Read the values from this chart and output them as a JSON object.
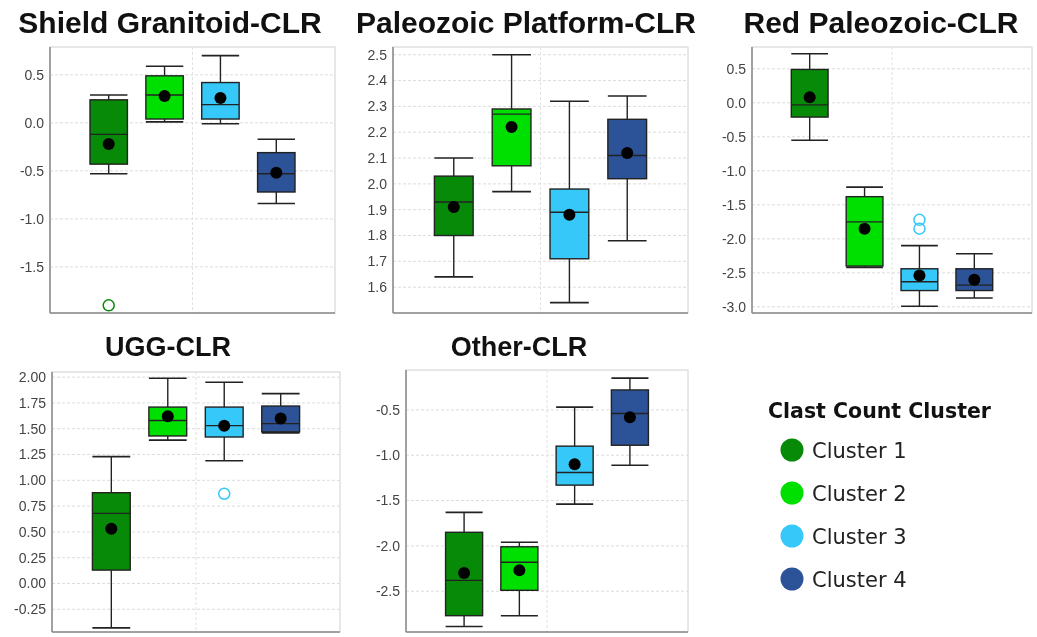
{
  "chart_data": [
    {
      "type": "box",
      "title": "Shield Granitoid-CLR",
      "categories": [
        null
      ],
      "ylim": [
        -1.98,
        0.79
      ],
      "yticks": [
        -1.5,
        {
          "value": -1,
          "label": "-1.0"
        },
        -0.5,
        {
          "value": 0,
          "label": "0.0"
        },
        0.5
      ],
      "grid": true,
      "series": [
        {
          "color": "#078a07",
          "boxes": [
            {
              "low": -0.53,
              "q1": -0.43,
              "median": -0.12,
              "q3": 0.24,
              "high": 0.29,
              "mean": -0.22,
              "outliers": [
                -1.9
              ]
            }
          ]
        },
        {
          "color": "#00e000",
          "boxes": [
            {
              "low": 0.01,
              "q1": 0.04,
              "median": 0.29,
              "q3": 0.49,
              "high": 0.59,
              "mean": 0.28
            }
          ]
        },
        {
          "color": "#35c8f8",
          "boxes": [
            {
              "low": -0.01,
              "q1": 0.04,
              "median": 0.19,
              "q3": 0.42,
              "high": 0.7,
              "mean": 0.26
            }
          ]
        },
        {
          "color": "#2c5297",
          "boxes": [
            {
              "low": -0.84,
              "q1": -0.72,
              "median": -0.53,
              "q3": -0.31,
              "high": -0.17,
              "mean": -0.52
            }
          ]
        }
      ]
    },
    {
      "type": "box",
      "title": "Paleozoic Platform-CLR",
      "categories": [
        null
      ],
      "ylim": [
        1.5,
        2.53
      ],
      "yticks": [
        1.6,
        1.7,
        1.8,
        1.9,
        {
          "value": 2,
          "label": "2.0"
        },
        2.1,
        2.2,
        2.3,
        2.4,
        2.5
      ],
      "grid": true,
      "series": [
        {
          "color": "#078a07",
          "boxes": [
            {
              "low": 1.64,
              "q1": 1.8,
              "median": 1.93,
              "q3": 2.03,
              "high": 2.1,
              "mean": 1.91
            }
          ]
        },
        {
          "color": "#00e000",
          "boxes": [
            {
              "low": 1.97,
              "q1": 2.07,
              "median": 2.27,
              "q3": 2.29,
              "high": 2.5,
              "mean": 2.22
            }
          ]
        },
        {
          "color": "#35c8f8",
          "boxes": [
            {
              "low": 1.54,
              "q1": 1.71,
              "median": 1.89,
              "q3": 1.98,
              "high": 2.32,
              "mean": 1.88
            }
          ]
        },
        {
          "color": "#2c5297",
          "boxes": [
            {
              "low": 1.78,
              "q1": 2.02,
              "median": 2.11,
              "q3": 2.25,
              "high": 2.34,
              "mean": 2.12
            }
          ]
        }
      ]
    },
    {
      "type": "box",
      "title": "Red Paleozoic-CLR",
      "categories": [
        null
      ],
      "ylim": [
        -3.09,
        0.82
      ],
      "yticks": [
        {
          "value": -3,
          "label": "-3.0"
        },
        -2.5,
        {
          "value": -2,
          "label": "-2.0"
        },
        -1.5,
        {
          "value": -1,
          "label": "-1.0"
        },
        -0.5,
        {
          "value": 0,
          "label": "0.0"
        },
        0.5
      ],
      "grid": true,
      "series": [
        {
          "color": "#078a07",
          "boxes": [
            {
              "low": -0.55,
              "q1": -0.21,
              "median": -0.03,
              "q3": 0.49,
              "high": 0.72,
              "mean": 0.08
            }
          ]
        },
        {
          "color": "#00e000",
          "boxes": [
            {
              "low": -2.42,
              "q1": -2.4,
              "median": -1.75,
              "q3": -1.38,
              "high": -1.24,
              "mean": -1.85
            }
          ]
        },
        {
          "color": "#35c8f8",
          "boxes": [
            {
              "low": -2.99,
              "q1": -2.76,
              "median": -2.63,
              "q3": -2.44,
              "high": -2.1,
              "mean": -2.54,
              "outliers": [
                -1.72,
                -1.85
              ]
            }
          ]
        },
        {
          "color": "#2c5297",
          "boxes": [
            {
              "low": -2.87,
              "q1": -2.76,
              "median": -2.68,
              "q3": -2.44,
              "high": -2.22,
              "mean": -2.6
            }
          ]
        }
      ]
    },
    {
      "type": "box",
      "title": "UGG-CLR",
      "categories": [
        null
      ],
      "ylim": [
        -0.47,
        2.05
      ],
      "yticks": [
        -0.25,
        {
          "value": 0,
          "label": "0.00"
        },
        0.25,
        {
          "value": 0.5,
          "label": "0.50"
        },
        0.75,
        {
          "value": 1,
          "label": "1.00"
        },
        1.25,
        {
          "value": 1.5,
          "label": "1.50"
        },
        1.75,
        {
          "value": 2,
          "label": "2.00"
        }
      ],
      "grid": true,
      "series": [
        {
          "color": "#078a07",
          "boxes": [
            {
              "low": -0.43,
              "q1": 0.13,
              "median": 0.68,
              "q3": 0.88,
              "high": 1.23,
              "mean": 0.53
            }
          ]
        },
        {
          "color": "#00e000",
          "boxes": [
            {
              "low": 1.39,
              "q1": 1.43,
              "median": 1.58,
              "q3": 1.71,
              "high": 1.99,
              "mean": 1.62
            }
          ]
        },
        {
          "color": "#35c8f8",
          "boxes": [
            {
              "low": 1.19,
              "q1": 1.42,
              "median": 1.53,
              "q3": 1.71,
              "high": 1.95,
              "mean": 1.53,
              "outliers": [
                0.87
              ]
            }
          ]
        },
        {
          "color": "#2c5297",
          "boxes": [
            {
              "low": 1.46,
              "q1": 1.47,
              "median": 1.55,
              "q3": 1.72,
              "high": 1.84,
              "mean": 1.6
            }
          ]
        }
      ]
    },
    {
      "type": "box",
      "title": "Other-CLR",
      "categories": [
        null
      ],
      "ylim": [
        -2.95,
        -0.06
      ],
      "yticks": [
        -2.5,
        {
          "value": -2,
          "label": "-2.0"
        },
        -1.5,
        {
          "value": -1,
          "label": "-1.0"
        },
        -0.5
      ],
      "grid": true,
      "legend": "right",
      "legend_title": "Clast Count Cluster",
      "series": [
        {
          "name": "Cluster 1",
          "color": "#078a07",
          "boxes": [
            {
              "low": -2.89,
              "q1": -2.77,
              "median": -2.38,
              "q3": -1.85,
              "high": -1.63,
              "mean": -2.3
            }
          ]
        },
        {
          "name": "Cluster 2",
          "color": "#00e000",
          "boxes": [
            {
              "low": -2.77,
              "q1": -2.49,
              "median": -2.18,
              "q3": -2.01,
              "high": -1.96,
              "mean": -2.27
            }
          ]
        },
        {
          "name": "Cluster 3",
          "color": "#35c8f8",
          "boxes": [
            {
              "low": -1.54,
              "q1": -1.33,
              "median": -1.19,
              "q3": -0.9,
              "high": -0.47,
              "mean": -1.1
            }
          ]
        },
        {
          "name": "Cluster 4",
          "color": "#2c5297",
          "boxes": [
            {
              "low": -1.11,
              "q1": -0.89,
              "median": -0.54,
              "q3": -0.28,
              "high": -0.15,
              "mean": -0.58
            }
          ]
        }
      ]
    }
  ]
}
